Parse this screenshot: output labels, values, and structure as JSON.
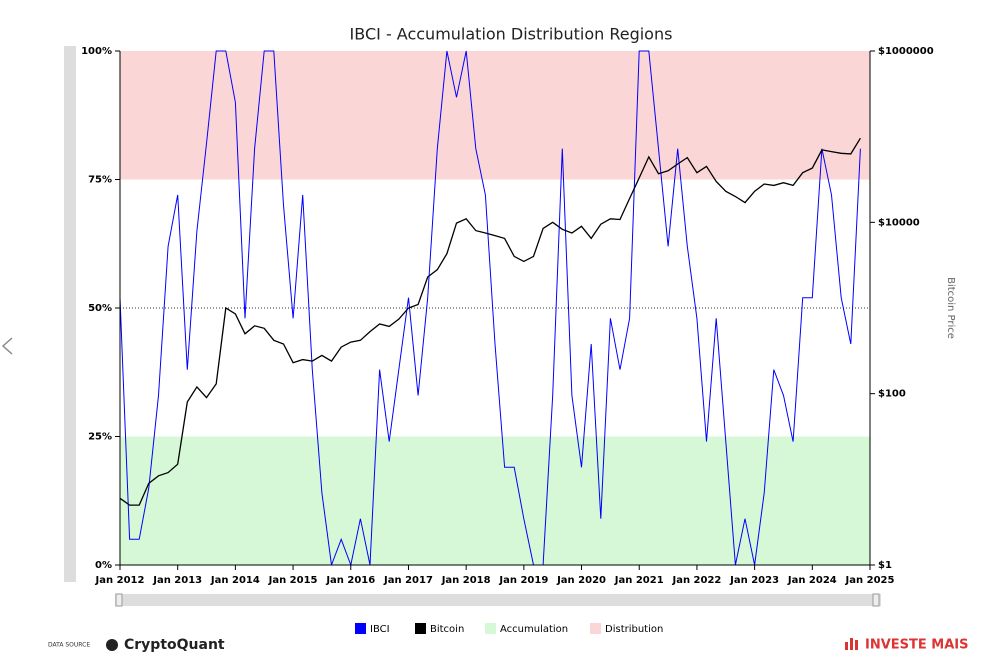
{
  "chart_data": {
    "type": "line",
    "title": "IBCI - Accumulation Distribution Regions",
    "y2_label": "Bitcoin Price",
    "x": [
      "2012-01",
      "2012-03",
      "2012-05",
      "2012-07",
      "2012-09",
      "2012-11",
      "2013-01",
      "2013-03",
      "2013-05",
      "2013-07",
      "2013-09",
      "2013-11",
      "2014-01",
      "2014-03",
      "2014-05",
      "2014-07",
      "2014-09",
      "2014-11",
      "2015-01",
      "2015-03",
      "2015-05",
      "2015-07",
      "2015-09",
      "2015-11",
      "2016-01",
      "2016-03",
      "2016-05",
      "2016-07",
      "2016-09",
      "2016-11",
      "2017-01",
      "2017-03",
      "2017-05",
      "2017-07",
      "2017-09",
      "2017-11",
      "2018-01",
      "2018-03",
      "2018-05",
      "2018-07",
      "2018-09",
      "2018-11",
      "2019-01",
      "2019-03",
      "2019-05",
      "2019-07",
      "2019-09",
      "2019-11",
      "2020-01",
      "2020-03",
      "2020-05",
      "2020-07",
      "2020-09",
      "2020-11",
      "2021-01",
      "2021-03",
      "2021-05",
      "2021-07",
      "2021-09",
      "2021-11",
      "2022-01",
      "2022-03",
      "2022-05",
      "2022-07",
      "2022-09",
      "2022-11",
      "2023-01",
      "2023-03",
      "2023-05",
      "2023-07",
      "2023-09",
      "2023-11",
      "2024-01",
      "2024-03",
      "2024-05",
      "2024-07",
      "2024-09",
      "2024-11"
    ],
    "series": [
      {
        "name": "IBCI",
        "color": "#0000ff",
        "values": [
          52,
          5,
          5,
          15,
          33,
          62,
          72,
          38,
          65,
          82,
          100,
          100,
          90,
          48,
          81,
          100,
          100,
          70,
          48,
          72,
          38,
          14,
          0,
          5,
          0,
          9,
          0,
          38,
          24,
          38,
          52,
          33,
          52,
          81,
          100,
          91,
          100,
          81,
          72,
          43,
          19,
          19,
          9,
          0,
          0,
          33,
          81,
          33,
          19,
          43,
          9,
          48,
          38,
          48,
          100,
          100,
          81,
          62,
          81,
          62,
          48,
          24,
          48,
          24,
          0,
          9,
          0,
          14,
          38,
          33,
          24,
          52,
          52,
          81,
          72,
          52,
          43,
          81
        ]
      },
      {
        "name": "Bitcoin",
        "color": "#000000",
        "axis": "y2",
        "values": [
          6,
          5,
          5,
          9,
          11,
          12,
          15,
          80,
          120,
          90,
          130,
          1000,
          850,
          500,
          620,
          580,
          420,
          380,
          230,
          250,
          240,
          280,
          240,
          350,
          400,
          420,
          530,
          650,
          610,
          740,
          1000,
          1100,
          2300,
          2800,
          4300,
          9800,
          11000,
          8000,
          7500,
          7000,
          6500,
          4000,
          3500,
          4000,
          8500,
          10000,
          8300,
          7500,
          9000,
          6500,
          9500,
          11000,
          10800,
          19000,
          33000,
          58000,
          37000,
          40000,
          48000,
          57000,
          38000,
          45000,
          30000,
          23000,
          20000,
          17000,
          23000,
          28000,
          27000,
          29000,
          27000,
          38000,
          43000,
          70000,
          67000,
          64000,
          63000,
          96000
        ]
      }
    ],
    "bands": [
      {
        "name": "Accumulation",
        "color": "#d6f8d6",
        "range": [
          0,
          25
        ]
      },
      {
        "name": "Distribution",
        "color": "#fbd6d6",
        "range": [
          75,
          100
        ]
      }
    ],
    "reference_line": 50,
    "xlim": [
      "2012-01",
      "2025-01"
    ],
    "xticks": [
      {
        "value": "2012-01",
        "label": "Jan 2012"
      },
      {
        "value": "2013-01",
        "label": "Jan 2013"
      },
      {
        "value": "2014-01",
        "label": "Jan 2014"
      },
      {
        "value": "2015-01",
        "label": "Jan 2015"
      },
      {
        "value": "2016-01",
        "label": "Jan 2016"
      },
      {
        "value": "2017-01",
        "label": "Jan 2017"
      },
      {
        "value": "2018-01",
        "label": "Jan 2018"
      },
      {
        "value": "2019-01",
        "label": "Jan 2019"
      },
      {
        "value": "2020-01",
        "label": "Jan 2020"
      },
      {
        "value": "2021-01",
        "label": "Jan 2021"
      },
      {
        "value": "2022-01",
        "label": "Jan 2022"
      },
      {
        "value": "2023-01",
        "label": "Jan 2023"
      },
      {
        "value": "2024-01",
        "label": "Jan 2024"
      },
      {
        "value": "2025-01",
        "label": "Jan 2025"
      }
    ],
    "ylim": [
      0,
      100
    ],
    "yticks": [
      {
        "value": 0,
        "label": "0%"
      },
      {
        "value": 25,
        "label": "25%"
      },
      {
        "value": 50,
        "label": "50%"
      },
      {
        "value": 75,
        "label": "75%"
      },
      {
        "value": 100,
        "label": "100%"
      }
    ],
    "y2lim": [
      1,
      1000000
    ],
    "y2_log": true,
    "y2ticks": [
      {
        "value": 1,
        "label": "$1"
      },
      {
        "value": 100,
        "label": "$100"
      },
      {
        "value": 10000,
        "label": "$10000"
      },
      {
        "value": 1000000,
        "label": "$1000000"
      }
    ]
  },
  "footer": {
    "source_label": "DATA SOURCE",
    "source": "CryptoQuant",
    "brand": "INVESTE MAIS"
  }
}
